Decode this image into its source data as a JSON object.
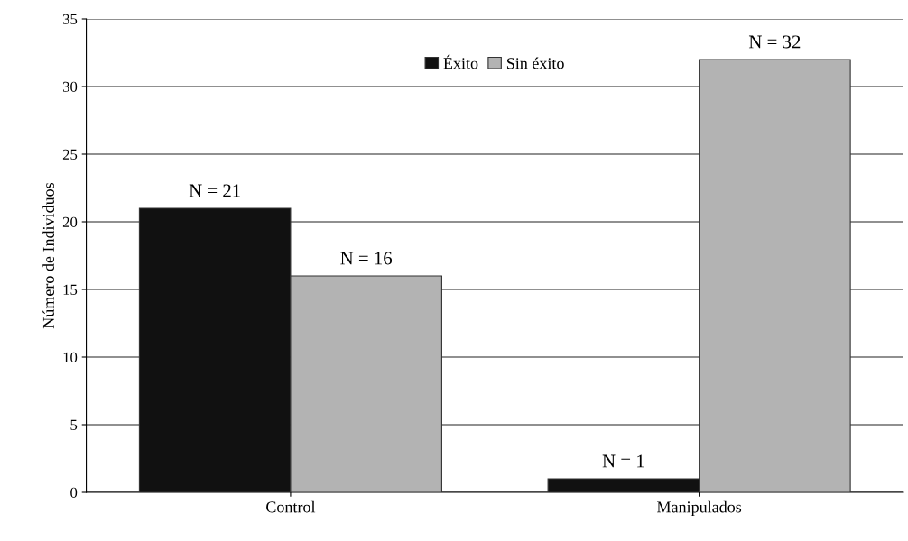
{
  "chart_data": {
    "type": "bar",
    "ylabel": "Número de Individuos",
    "categories": [
      "Control",
      "Manipulados"
    ],
    "series": [
      {
        "name": "Éxito",
        "color": "#111111",
        "values": [
          21,
          1
        ],
        "value_labels": [
          "N = 21",
          "N = 1"
        ]
      },
      {
        "name": "Sin éxito",
        "color": "#b3b3b3",
        "values": [
          16,
          32
        ],
        "value_labels": [
          "N = 16",
          "N = 32"
        ]
      }
    ],
    "ylim": [
      0,
      35
    ],
    "yticks": [
      0,
      5,
      10,
      15,
      20,
      25,
      30,
      35
    ],
    "grid": "y",
    "legend": "top"
  }
}
